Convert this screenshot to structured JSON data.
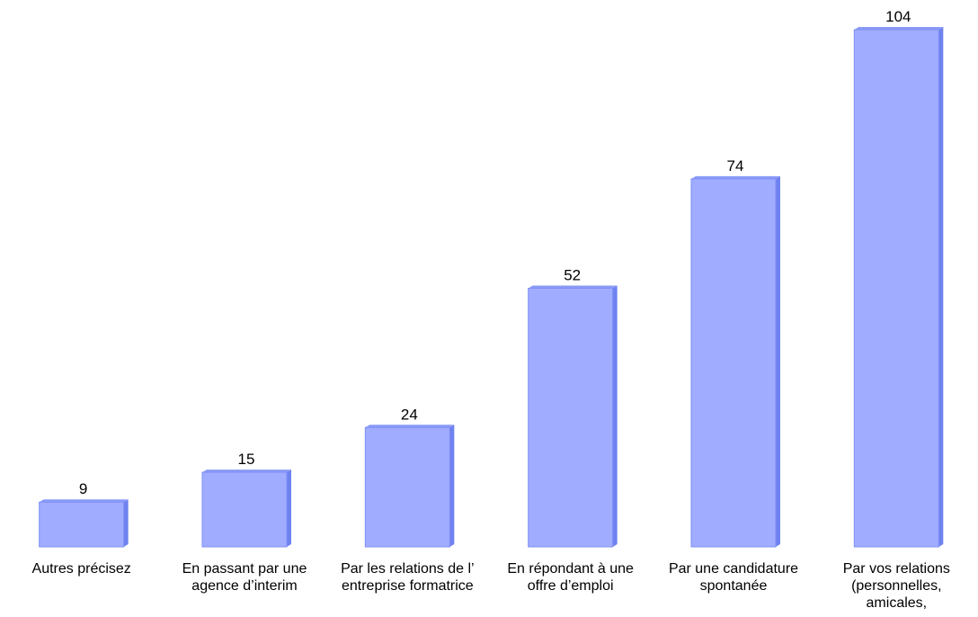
{
  "chart_data": {
    "type": "bar",
    "style": "3d-column",
    "categories": [
      [
        "Autres précisez"
      ],
      [
        "En passant par une",
        "agence d’interim"
      ],
      [
        "Par les relations de l’",
        "entreprise formatrice"
      ],
      [
        "En répondant à une",
        "offre d’emploi"
      ],
      [
        "Par une candidature",
        "spontanée"
      ],
      [
        "Par vos relations",
        "(personnelles,",
        "amicales,"
      ]
    ],
    "values": [
      9,
      15,
      24,
      52,
      74,
      104
    ],
    "ylim": [
      0,
      104
    ],
    "grid": false,
    "legend": false,
    "colors": {
      "front": "#a0acff",
      "side": "#6f82f0",
      "top": "#8a9af8",
      "edge": "#7f8ff5"
    }
  }
}
